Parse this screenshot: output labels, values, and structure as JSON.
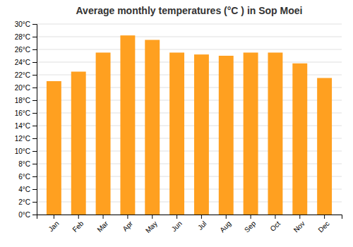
{
  "chart_data": {
    "type": "bar",
    "title": "Average monthly temperatures (°C ) in Sop Moei",
    "categories": [
      "Jan",
      "Feb",
      "Mar",
      "Apr",
      "May",
      "Jun",
      "Jul",
      "Aug",
      "Sep",
      "Oct",
      "Nov",
      "Dec"
    ],
    "values": [
      21.0,
      22.5,
      25.5,
      28.2,
      27.5,
      25.5,
      25.2,
      25.0,
      25.5,
      25.5,
      23.8,
      21.5
    ],
    "color": "#FFA020",
    "ylim": [
      0,
      30
    ],
    "yticks": [
      {
        "value": 0,
        "label": "0°C"
      },
      {
        "value": 2,
        "label": "2°C"
      },
      {
        "value": 4,
        "label": "4°C"
      },
      {
        "value": 6,
        "label": "6°C"
      },
      {
        "value": 8,
        "label": "8°C"
      },
      {
        "value": 10,
        "label": "10°C"
      },
      {
        "value": 12,
        "label": "12°C"
      },
      {
        "value": 14,
        "label": "14°C"
      },
      {
        "value": 16,
        "label": "16°C"
      },
      {
        "value": 18,
        "label": "18°C"
      },
      {
        "value": 20,
        "label": "20°C"
      },
      {
        "value": 22,
        "label": "22°C"
      },
      {
        "value": 24,
        "label": "24°C"
      },
      {
        "value": 26,
        "label": "26°C"
      },
      {
        "value": 28,
        "label": "28°C"
      },
      {
        "value": 30,
        "label": "30°C"
      }
    ],
    "grid": true
  }
}
